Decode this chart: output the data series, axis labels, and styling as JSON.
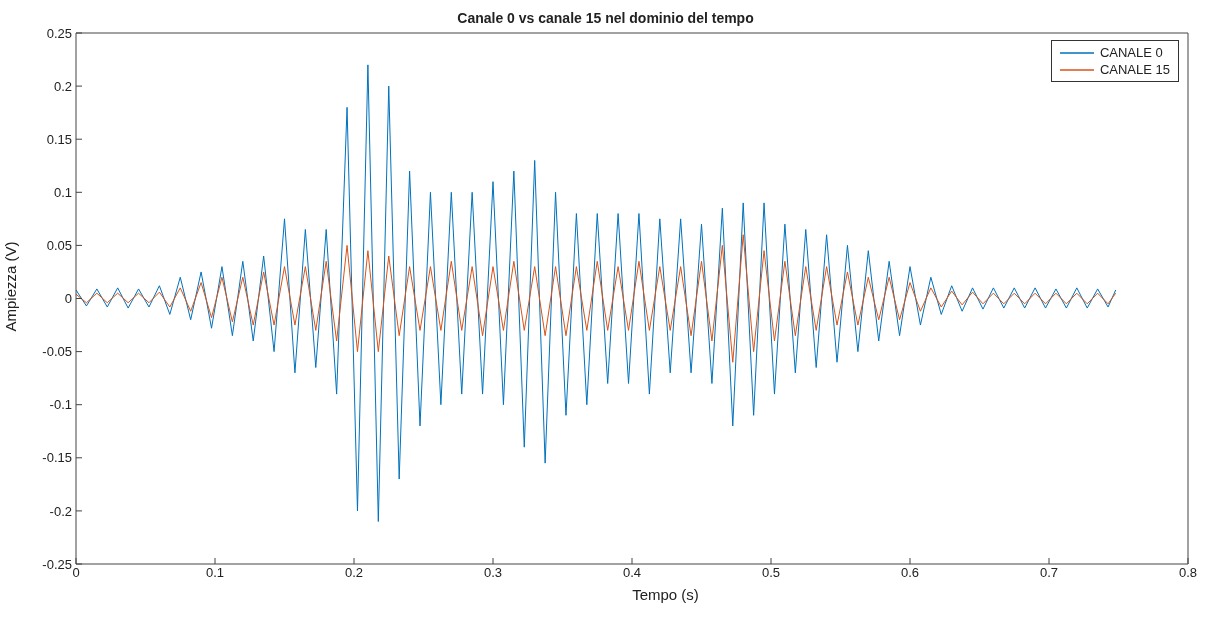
{
  "chart_data": {
    "type": "line",
    "title": "Canale 0 vs canale 15 nel dominio del tempo",
    "xlabel": "Tempo (s)",
    "ylabel": "Ampiezza (V)",
    "xlim": [
      0,
      0.8
    ],
    "xticks": [
      0,
      0.1,
      0.2,
      0.3,
      0.4,
      0.5,
      0.6,
      0.7,
      0.8
    ],
    "ylim": [
      -0.25,
      0.25
    ],
    "yticks": [
      -0.25,
      -0.2,
      -0.15,
      -0.1,
      -0.05,
      0,
      0.05,
      0.1,
      0.15,
      0.2,
      0.25
    ],
    "grid": false,
    "legend": "top right",
    "marker": "none",
    "line_style": "solid",
    "x": [
      0,
      0.0075,
      0.015,
      0.0225,
      0.03,
      0.0375,
      0.045,
      0.0525,
      0.06,
      0.0675,
      0.075,
      0.0825,
      0.09,
      0.0975,
      0.105,
      0.1125,
      0.12,
      0.1275,
      0.135,
      0.1425,
      0.15,
      0.1575,
      0.165,
      0.1725,
      0.18,
      0.1875,
      0.195,
      0.2025,
      0.21,
      0.2175,
      0.225,
      0.2325,
      0.24,
      0.2475,
      0.255,
      0.2625,
      0.27,
      0.2775,
      0.285,
      0.2925,
      0.3,
      0.3075,
      0.315,
      0.3225,
      0.33,
      0.3375,
      0.345,
      0.3525,
      0.36,
      0.3675,
      0.375,
      0.3825,
      0.39,
      0.3975,
      0.405,
      0.4125,
      0.42,
      0.4275,
      0.435,
      0.4425,
      0.45,
      0.4575,
      0.465,
      0.4725,
      0.48,
      0.4875,
      0.495,
      0.5025,
      0.51,
      0.5175,
      0.525,
      0.5325,
      0.54,
      0.5475,
      0.555,
      0.5625,
      0.57,
      0.5775,
      0.585,
      0.5925,
      0.6,
      0.6075,
      0.615,
      0.6225,
      0.63,
      0.6375,
      0.645,
      0.6525,
      0.66,
      0.6675,
      0.675,
      0.6825,
      0.69,
      0.6975,
      0.705,
      0.7125,
      0.72,
      0.7275,
      0.735,
      0.7425,
      0.748
    ],
    "series": [
      {
        "name": "CANALE 0",
        "color": "#0072bd",
        "values": [
          0.008,
          -0.007,
          0.009,
          -0.008,
          0.01,
          -0.009,
          0.009,
          -0.008,
          0.012,
          -0.015,
          0.02,
          -0.02,
          0.025,
          -0.028,
          0.03,
          -0.035,
          0.035,
          -0.04,
          0.04,
          -0.05,
          0.075,
          -0.07,
          0.065,
          -0.065,
          0.065,
          -0.09,
          0.18,
          -0.2,
          0.22,
          -0.21,
          0.2,
          -0.17,
          0.12,
          -0.12,
          0.1,
          -0.1,
          0.1,
          -0.09,
          0.1,
          -0.09,
          0.11,
          -0.1,
          0.12,
          -0.14,
          0.13,
          -0.155,
          0.1,
          -0.11,
          0.08,
          -0.1,
          0.08,
          -0.08,
          0.08,
          -0.08,
          0.08,
          -0.09,
          0.075,
          -0.07,
          0.075,
          -0.07,
          0.07,
          -0.08,
          0.085,
          -0.12,
          0.09,
          -0.11,
          0.09,
          -0.09,
          0.07,
          -0.07,
          0.065,
          -0.065,
          0.06,
          -0.06,
          0.05,
          -0.05,
          0.045,
          -0.04,
          0.035,
          -0.035,
          0.03,
          -0.025,
          0.02,
          -0.015,
          0.012,
          -0.012,
          0.01,
          -0.01,
          0.01,
          -0.009,
          0.01,
          -0.009,
          0.01,
          -0.009,
          0.009,
          -0.009,
          0.01,
          -0.009,
          0.009,
          -0.008,
          0.008
        ]
      },
      {
        "name": "CANALE 15",
        "color": "#d95319",
        "values": [
          0.004,
          -0.004,
          0.005,
          -0.004,
          0.005,
          -0.004,
          0.005,
          -0.004,
          0.006,
          -0.008,
          0.01,
          -0.012,
          0.015,
          -0.018,
          0.02,
          -0.022,
          0.02,
          -0.025,
          0.025,
          -0.025,
          0.03,
          -0.025,
          0.03,
          -0.03,
          0.035,
          -0.04,
          0.05,
          -0.05,
          0.045,
          -0.05,
          0.04,
          -0.035,
          0.03,
          -0.03,
          0.03,
          -0.03,
          0.035,
          -0.03,
          0.03,
          -0.035,
          0.03,
          -0.03,
          0.035,
          -0.03,
          0.03,
          -0.035,
          0.03,
          -0.035,
          0.03,
          -0.03,
          0.035,
          -0.03,
          0.03,
          -0.03,
          0.035,
          -0.03,
          0.03,
          -0.03,
          0.03,
          -0.035,
          0.035,
          -0.04,
          0.05,
          -0.06,
          0.06,
          -0.05,
          0.045,
          -0.04,
          0.035,
          -0.035,
          0.03,
          -0.03,
          0.03,
          -0.025,
          0.025,
          -0.025,
          0.02,
          -0.02,
          0.02,
          -0.02,
          0.015,
          -0.012,
          0.01,
          -0.008,
          0.007,
          -0.006,
          0.006,
          -0.005,
          0.005,
          -0.005,
          0.005,
          -0.005,
          0.005,
          -0.005,
          0.005,
          -0.005,
          0.005,
          -0.005,
          0.005,
          -0.005,
          0.005
        ]
      }
    ]
  }
}
